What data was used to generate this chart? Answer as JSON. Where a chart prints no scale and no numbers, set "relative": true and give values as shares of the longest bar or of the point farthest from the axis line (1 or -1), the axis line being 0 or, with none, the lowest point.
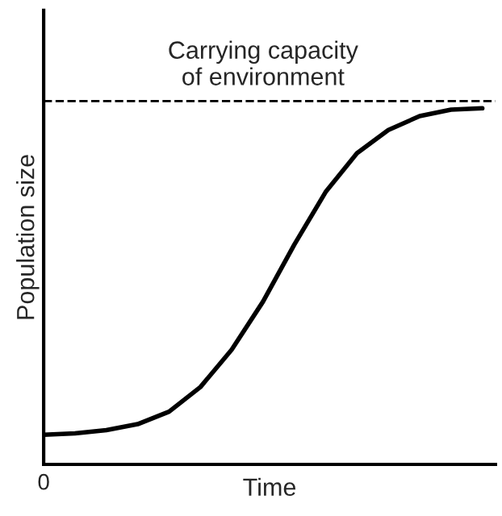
{
  "chart_data": {
    "type": "line",
    "relative": true,
    "xlabel": "Time",
    "ylabel": "Population size",
    "categories": [
      null,
      null,
      null,
      null,
      null,
      null,
      null,
      null,
      null,
      null,
      null,
      null,
      null,
      null,
      null
    ],
    "series": [
      {
        "color": "#000000",
        "values": [
          0.083,
          0.087,
          0.096,
          0.113,
          0.148,
          0.217,
          0.322,
          0.457,
          0.617,
          0.765,
          0.874,
          0.939,
          0.978,
          0.996,
          1
        ]
      }
    ],
    "ref_lines": [
      {
        "axis": "y",
        "value": 1.02,
        "label": "Carrying capacity\nof environment",
        "color": "#000000",
        "line_style": "dashed"
      }
    ],
    "annotations": [
      "0"
    ],
    "legend": false,
    "marker": "none",
    "line_style": "solid"
  }
}
